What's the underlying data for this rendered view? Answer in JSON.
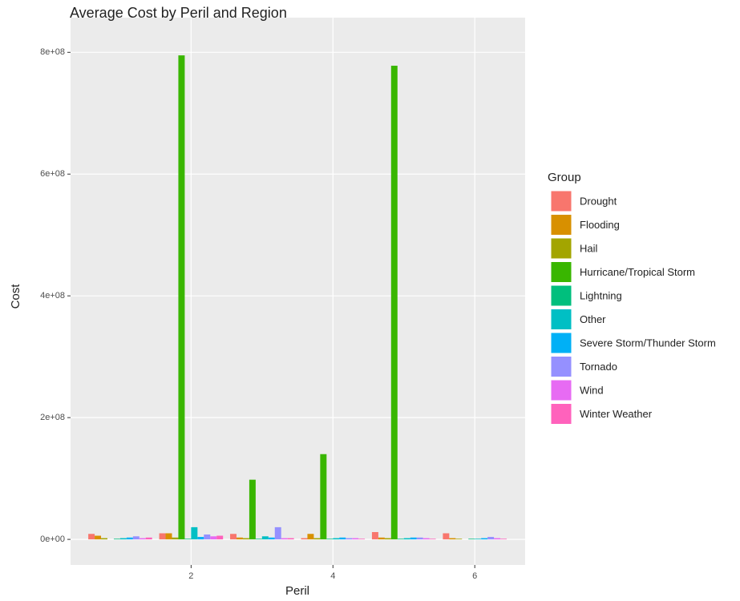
{
  "chart_data": {
    "type": "bar",
    "title": "Average Cost by Peril and Region",
    "x_label": "Peril",
    "y_label": "Cost",
    "legend_title": "Group",
    "x": [
      1,
      2,
      3,
      4,
      5,
      6
    ],
    "xlim": [
      0.3,
      6.71
    ],
    "xticks": [
      2,
      4,
      6
    ],
    "ylim": [
      -42000000,
      857000000
    ],
    "yticks": [
      {
        "value": 0,
        "label": "0e+00"
      },
      {
        "value": 200000000,
        "label": "2e+08"
      },
      {
        "value": 400000000,
        "label": "4e+08"
      },
      {
        "value": 600000000,
        "label": "6e+08"
      },
      {
        "value": 800000000,
        "label": "8e+08"
      }
    ],
    "grid": true,
    "legend": "right",
    "series": [
      {
        "name": "Drought",
        "color": "#F8766D",
        "values": [
          9000000,
          10000000,
          9000000,
          2000000,
          12000000,
          10000000
        ]
      },
      {
        "name": "Flooding",
        "color": "#D89000",
        "values": [
          6000000,
          10000000,
          3000000,
          9000000,
          3000000,
          2000000
        ]
      },
      {
        "name": "Hail",
        "color": "#A3A500",
        "values": [
          2000000,
          3000000,
          2000000,
          2000000,
          2000000,
          1000000
        ]
      },
      {
        "name": "Hurricane/Tropical Storm",
        "color": "#39B600",
        "values": [
          null,
          795000000,
          98000000,
          140000000,
          778000000,
          null
        ]
      },
      {
        "name": "Lightning",
        "color": "#00BF7D",
        "values": [
          1000000,
          1000000,
          1000000,
          1000000,
          1000000,
          1000000
        ]
      },
      {
        "name": "Other",
        "color": "#00BFC4",
        "values": [
          2000000,
          20000000,
          5000000,
          2000000,
          2000000,
          1000000
        ]
      },
      {
        "name": "Severe Storm/Thunder Storm",
        "color": "#00B0F6",
        "values": [
          3000000,
          4000000,
          3000000,
          3000000,
          3000000,
          2000000
        ]
      },
      {
        "name": "Tornado",
        "color": "#9590FF",
        "values": [
          5000000,
          8000000,
          20000000,
          2000000,
          3000000,
          4000000
        ]
      },
      {
        "name": "Wind",
        "color": "#E76BF3",
        "values": [
          2000000,
          5000000,
          2000000,
          2000000,
          2000000,
          2000000
        ]
      },
      {
        "name": "Winter Weather",
        "color": "#FF62BC",
        "values": [
          3000000,
          6000000,
          2000000,
          1000000,
          1000000,
          1000000
        ]
      }
    ]
  }
}
